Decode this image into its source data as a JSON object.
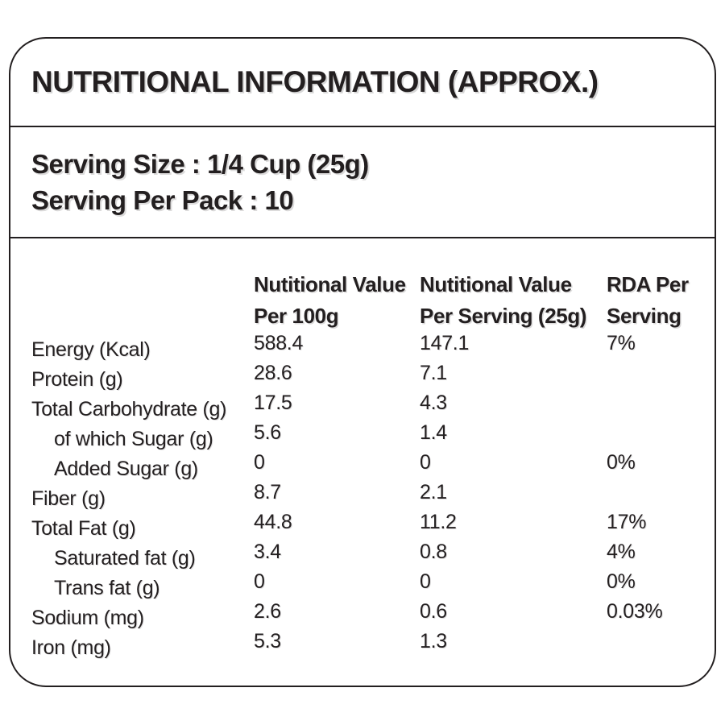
{
  "colors": {
    "text": "#231f20",
    "border": "#231f20",
    "background": "#ffffff"
  },
  "title": "NUTRITIONAL INFORMATION (APPROX.)",
  "serving": {
    "size": "Serving Size : 1/4 Cup (25g)",
    "per_pack": "Serving Per Pack : 10"
  },
  "table": {
    "headers": [
      {
        "line1": "Nutitional Value",
        "line2": "Per 100g"
      },
      {
        "line1": "Nutitional Value",
        "line2": "Per Serving (25g)"
      },
      {
        "line1": "RDA Per",
        "line2": "Serving"
      }
    ],
    "rows": [
      {
        "label": "Energy (Kcal)",
        "indent": false,
        "per_100g": "588.4",
        "per_serving": "147.1",
        "rda": "7%"
      },
      {
        "label": "Protein (g)",
        "indent": false,
        "per_100g": "28.6",
        "per_serving": "7.1",
        "rda": ""
      },
      {
        "label": "Total Carbohydrate (g)",
        "indent": false,
        "per_100g": "17.5",
        "per_serving": "4.3",
        "rda": ""
      },
      {
        "label": "of which Sugar (g)",
        "indent": true,
        "per_100g": "5.6",
        "per_serving": "1.4",
        "rda": ""
      },
      {
        "label": "Added Sugar (g)",
        "indent": true,
        "per_100g": "0",
        "per_serving": "0",
        "rda": "0%"
      },
      {
        "label": "Fiber (g)",
        "indent": false,
        "per_100g": "8.7",
        "per_serving": "2.1",
        "rda": ""
      },
      {
        "label": "Total Fat (g)",
        "indent": false,
        "per_100g": "44.8",
        "per_serving": "11.2",
        "rda": "17%"
      },
      {
        "label": "Saturated fat (g)",
        "indent": true,
        "per_100g": "3.4",
        "per_serving": "0.8",
        "rda": "4%"
      },
      {
        "label": "Trans fat (g)",
        "indent": true,
        "per_100g": "0",
        "per_serving": "0",
        "rda": "0%"
      },
      {
        "label": "Sodium (mg)",
        "indent": false,
        "per_100g": "2.6",
        "per_serving": "0.6",
        "rda": "0.03%"
      },
      {
        "label": "Iron (mg)",
        "indent": false,
        "per_100g": "5.3",
        "per_serving": "1.3",
        "rda": ""
      }
    ]
  }
}
